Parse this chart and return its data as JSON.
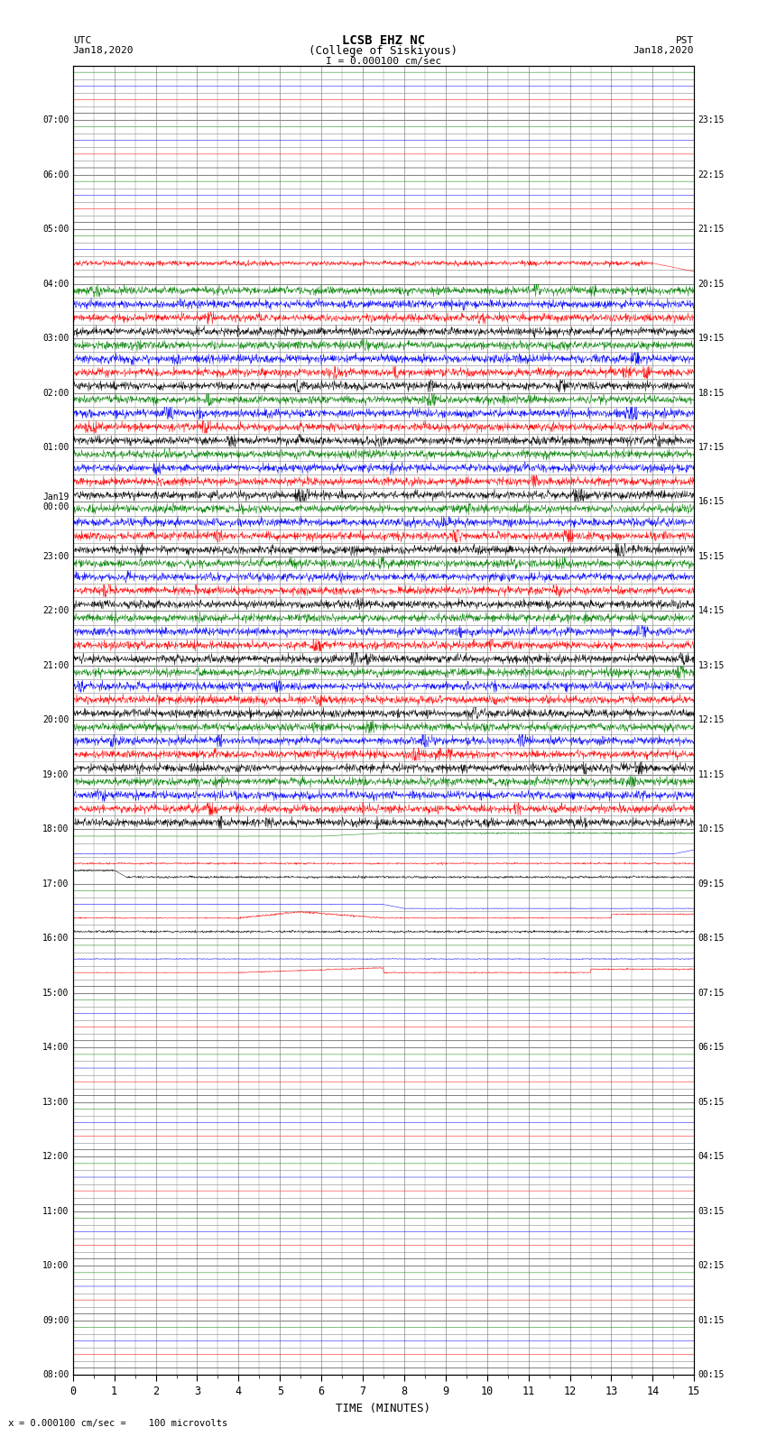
{
  "title_line1": "LCSB EHZ NC",
  "title_line2": "(College of Siskiyous)",
  "title_scale": "I = 0.000100 cm/sec",
  "left_label_top": "UTC",
  "left_label_date": "Jan18,2020",
  "right_label_top": "PST",
  "right_label_date": "Jan18,2020",
  "bottom_label": "TIME (MINUTES)",
  "scale_label": "= 0.000100 cm/sec =    100 microvolts",
  "utc_times": [
    "08:00",
    "",
    "",
    "",
    "09:00",
    "",
    "",
    "",
    "10:00",
    "",
    "",
    "",
    "11:00",
    "",
    "",
    "",
    "12:00",
    "",
    "",
    "",
    "13:00",
    "",
    "",
    "",
    "14:00",
    "",
    "",
    "",
    "15:00",
    "",
    "",
    "",
    "16:00",
    "",
    "",
    "",
    "17:00",
    "",
    "",
    "",
    "18:00",
    "",
    "",
    "",
    "19:00",
    "",
    "",
    "",
    "20:00",
    "",
    "",
    "",
    "21:00",
    "",
    "",
    "",
    "22:00",
    "",
    "",
    "",
    "23:00",
    "",
    "",
    "",
    "Jan19\n00:00",
    "",
    "",
    "",
    "01:00",
    "",
    "",
    "",
    "02:00",
    "",
    "",
    "",
    "03:00",
    "",
    "",
    "",
    "04:00",
    "",
    "",
    "",
    "05:00",
    "",
    "",
    "",
    "06:00",
    "",
    "",
    "",
    "07:00",
    "",
    "",
    ""
  ],
  "pst_times": [
    "00:15",
    "",
    "",
    "",
    "01:15",
    "",
    "",
    "",
    "02:15",
    "",
    "",
    "",
    "03:15",
    "",
    "",
    "",
    "04:15",
    "",
    "",
    "",
    "05:15",
    "",
    "",
    "",
    "06:15",
    "",
    "",
    "",
    "07:15",
    "",
    "",
    "",
    "08:15",
    "",
    "",
    "",
    "09:15",
    "",
    "",
    "",
    "10:15",
    "",
    "",
    "",
    "11:15",
    "",
    "",
    "",
    "12:15",
    "",
    "",
    "",
    "13:15",
    "",
    "",
    "",
    "14:15",
    "",
    "",
    "",
    "15:15",
    "",
    "",
    "",
    "16:15",
    "",
    "",
    "",
    "17:15",
    "",
    "",
    "",
    "18:15",
    "",
    "",
    "",
    "19:15",
    "",
    "",
    "",
    "20:15",
    "",
    "",
    "",
    "21:15",
    "",
    "",
    "",
    "22:15",
    "",
    "",
    "",
    "23:15",
    "",
    "",
    ""
  ],
  "n_hours": 24,
  "traces_per_hour": 4,
  "n_points": 1800,
  "colors_cycle": [
    "black",
    "red",
    "blue",
    "green"
  ],
  "background_color": "white",
  "grid_color": "#888888",
  "fig_width": 8.5,
  "fig_height": 16.13
}
